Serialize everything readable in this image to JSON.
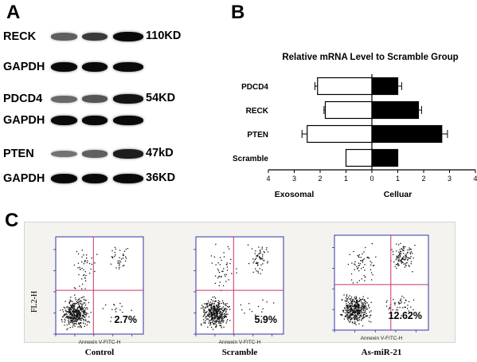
{
  "panel_a": {
    "letter": "A",
    "rows": [
      {
        "label": "RECK",
        "kd": "110KD",
        "intensities": [
          0.55,
          0.75,
          1.0
        ]
      },
      {
        "label": "GAPDH",
        "kd": "",
        "intensities": [
          1.0,
          1.0,
          1.0
        ]
      },
      {
        "label": "PDCD4",
        "kd": "54KD",
        "intensities": [
          0.5,
          0.6,
          0.95
        ]
      },
      {
        "label": "GAPDH",
        "kd": "",
        "intensities": [
          1.0,
          1.0,
          1.0
        ]
      },
      {
        "label": "PTEN",
        "kd": "47kD",
        "intensities": [
          0.45,
          0.55,
          0.9
        ]
      },
      {
        "label": "GAPDH",
        "kd": "36KD",
        "intensities": [
          1.0,
          1.0,
          1.0
        ]
      }
    ]
  },
  "panel_b": {
    "letter": "B",
    "chart_data": {
      "type": "bar",
      "title": "Relative mRNA Level to Scramble Group",
      "categories": [
        "PDCD4",
        "RECK",
        "PTEN",
        "Scramble"
      ],
      "series": [
        {
          "name": "Exosomal",
          "values": [
            2.1,
            1.8,
            2.5,
            1.0
          ],
          "errors": [
            0.1,
            0.05,
            0.2,
            0.0
          ],
          "color": "#ffffff"
        },
        {
          "name": "Celluar",
          "values": [
            1.0,
            1.8,
            2.7,
            1.0
          ],
          "errors": [
            0.15,
            0.12,
            0.22,
            0.0
          ],
          "color": "#000000"
        }
      ],
      "xlim": [
        -4,
        4
      ],
      "xticks": [
        "4",
        "3",
        "2",
        "1",
        "0",
        "1",
        "2",
        "3",
        "4"
      ],
      "xlabel_left": "Exosomal",
      "xlabel_right": "Celluar"
    }
  },
  "panel_c": {
    "letter": "C",
    "ylabel": "FL2-H",
    "plots": [
      {
        "caption": "Control",
        "percent": "2.7%",
        "xlabel": "Annexin V-FITC-H"
      },
      {
        "caption": "Scramble",
        "percent": "5.9%",
        "xlabel": "Annexin V-FITC-H"
      },
      {
        "caption": "As-miR-21",
        "percent": "12.62%",
        "xlabel": "Annexin V-FITC-H"
      }
    ],
    "quad_color": "#cc3366",
    "axis_color": "#3333aa"
  }
}
